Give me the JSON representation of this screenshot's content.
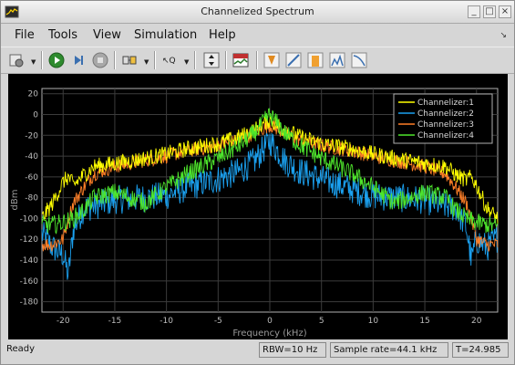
{
  "window": {
    "title": "Channelized Spectrum",
    "buttons": [
      "minimize",
      "maximize",
      "close"
    ]
  },
  "menu": [
    "File",
    "Tools",
    "View",
    "Simulation",
    "Help"
  ],
  "toolbar": {
    "icons": [
      "settings-icon",
      "run-icon",
      "step-forward-icon",
      "stop-icon",
      "signal-selection-icon",
      "highlight-icon",
      "scale-axes-icon",
      "spectrum-settings-icon",
      "cursor-measurements-icon",
      "peak-finder-icon",
      "channel-measurements-icon",
      "distortion-icon",
      "ccdf-icon"
    ]
  },
  "status": {
    "left": "Ready",
    "rbw": "RBW=10 Hz",
    "sample_rate": "Sample rate=44.1 kHz",
    "time": "T=24.985"
  },
  "chart_data": {
    "type": "line",
    "title": "",
    "xlabel": "Frequency (kHz)",
    "ylabel": "dBm",
    "xlim": [
      -22.05,
      22.05
    ],
    "ylim": [
      -190,
      25
    ],
    "xticks": [
      -20,
      -15,
      -10,
      -5,
      0,
      5,
      10,
      15,
      20
    ],
    "yticks": [
      20,
      0,
      -20,
      -40,
      -60,
      -80,
      -100,
      -120,
      -140,
      -160,
      -180
    ],
    "grid": true,
    "legend_position": "top-right",
    "background": "#000000",
    "series": [
      {
        "name": "Channelizer:1",
        "color": "#ffff00",
        "x": [
          -22.05,
          -21.0,
          -20.0,
          -19.5,
          -19.0,
          -18.0,
          -17.0,
          -15.0,
          -12.0,
          -10.0,
          -8.0,
          -5.0,
          -3.0,
          -1.5,
          0,
          1.5,
          3.0,
          5.0,
          8.0,
          10.0,
          12.0,
          15.0,
          17.0,
          18.0,
          19.0,
          19.5,
          20.0,
          21.0,
          22.05
        ],
        "values": [
          -100,
          -85,
          -65,
          -60,
          -68,
          -58,
          -50,
          -47,
          -42,
          -38,
          -33,
          -28,
          -22,
          -15,
          -5,
          -15,
          -22,
          -28,
          -33,
          -38,
          -42,
          -47,
          -50,
          -58,
          -63,
          -60,
          -68,
          -90,
          -100
        ]
      },
      {
        "name": "Channelizer:2",
        "color": "#1ba1f0",
        "x": [
          -22.05,
          -21.0,
          -20.0,
          -19.5,
          -19.0,
          -18.0,
          -17.0,
          -15.0,
          -12.0,
          -10.0,
          -8.0,
          -5.0,
          -3.0,
          -1.5,
          0,
          1.5,
          3.0,
          5.0,
          8.0,
          10.0,
          12.0,
          15.0,
          17.0,
          18.0,
          19.0,
          19.5,
          20.0,
          21.0,
          22.05
        ],
        "values": [
          -115,
          -128,
          -135,
          -155,
          -110,
          -90,
          -88,
          -82,
          -80,
          -78,
          -70,
          -62,
          -55,
          -45,
          -25,
          -45,
          -55,
          -62,
          -72,
          -78,
          -80,
          -82,
          -88,
          -90,
          -108,
          -140,
          -120,
          -128,
          -118
        ]
      },
      {
        "name": "Channelizer:3",
        "color": "#ff7f27",
        "x": [
          -22.05,
          -21.0,
          -20.0,
          -19.5,
          -19.0,
          -18.0,
          -17.0,
          -15.0,
          -12.0,
          -10.0,
          -8.0,
          -5.0,
          -3.0,
          -1.5,
          0,
          1.5,
          3.0,
          5.0,
          8.0,
          10.0,
          12.0,
          15.0,
          17.0,
          18.0,
          19.0,
          19.5,
          20.0,
          21.0,
          22.05
        ],
        "values": [
          -125,
          -125,
          -120,
          -100,
          -85,
          -70,
          -57,
          -50,
          -44,
          -40,
          -35,
          -30,
          -25,
          -18,
          -10,
          -18,
          -25,
          -30,
          -35,
          -40,
          -44,
          -50,
          -57,
          -70,
          -85,
          -100,
          -120,
          -125,
          -125
        ]
      },
      {
        "name": "Channelizer:4",
        "color": "#4ee62c",
        "x": [
          -22.05,
          -21.0,
          -20.0,
          -19.5,
          -19.0,
          -18.0,
          -17.0,
          -15.0,
          -12.0,
          -10.0,
          -8.0,
          -5.0,
          -3.0,
          -1.5,
          0,
          1.5,
          3.0,
          5.0,
          8.0,
          10.0,
          12.0,
          15.0,
          17.0,
          18.0,
          19.0,
          19.5,
          20.0,
          21.0,
          22.05
        ],
        "values": [
          -106,
          -106,
          -104,
          -102,
          -100,
          -92,
          -80,
          -75,
          -85,
          -70,
          -57,
          -42,
          -30,
          -18,
          0,
          -18,
          -30,
          -42,
          -57,
          -70,
          -85,
          -75,
          -80,
          -92,
          -100,
          -102,
          -104,
          -106,
          -108
        ]
      }
    ]
  }
}
